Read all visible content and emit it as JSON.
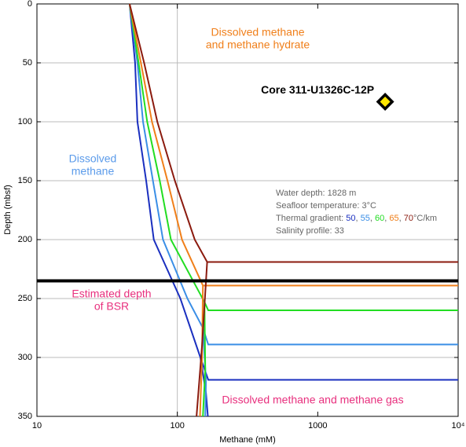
{
  "chart_data": {
    "type": "line",
    "xlabel": "Methane (mM)",
    "ylabel": "Depth (mbsf)",
    "xscale": "log",
    "xlim": [
      10,
      10000
    ],
    "xticks": [
      10,
      100,
      1000,
      {
        "value": 10000,
        "label": "10⁴"
      }
    ],
    "xgrid": [
      100
    ],
    "ylim": [
      0,
      350
    ],
    "yinverted": true,
    "yticks": [
      0,
      50,
      100,
      150,
      200,
      250,
      300,
      350
    ],
    "grid": true,
    "series": [
      {
        "name": "50",
        "color": "#1a2fbf",
        "x": [
          45.7,
          50,
          52,
          60,
          68,
          105,
          146,
          166,
          10000,
          null,
          146,
          160,
          165
        ],
        "y": [
          0,
          50,
          100,
          150,
          200,
          250,
          300,
          319,
          319,
          null,
          300,
          330,
          350
        ]
      },
      {
        "name": "55",
        "color": "#3a8ee6",
        "x": [
          45.7,
          52,
          57,
          67,
          79,
          118,
          152,
          166,
          10000,
          null,
          152,
          160,
          158
        ],
        "y": [
          0,
          50,
          100,
          150,
          200,
          250,
          275,
          289,
          289,
          null,
          275,
          320,
          350
        ]
      },
      {
        "name": "60",
        "color": "#22dd22",
        "x": [
          45.7,
          53,
          61,
          75,
          90,
          156,
          166,
          10000,
          null,
          156,
          158,
          152
        ],
        "y": [
          0,
          50,
          100,
          150,
          200,
          253,
          260,
          260,
          null,
          253,
          310,
          350
        ]
      },
      {
        "name": "65",
        "color": "#f07f1a",
        "x": [
          45.7,
          55,
          66,
          85,
          108,
          152,
          166,
          10000,
          null,
          152,
          150,
          145
        ],
        "y": [
          0,
          50,
          100,
          150,
          200,
          239,
          239,
          239,
          null,
          239,
          300,
          350
        ]
      },
      {
        "name": "70",
        "color": "#8b1a0e",
        "x": [
          45.7,
          58,
          72,
          96,
          133,
          163,
          166,
          10000,
          null,
          163,
          150,
          137
        ],
        "y": [
          0,
          50,
          100,
          150,
          200,
          219,
          219,
          219,
          null,
          219,
          290,
          350
        ]
      }
    ],
    "bsr_depth": 235,
    "core": {
      "label": "Core 311-U1326C-12P",
      "x": 3020,
      "y": 83
    },
    "annotations": {
      "hydrate": [
        "Dissolved methane",
        "and methane hydrate"
      ],
      "dissolved": [
        "Dissolved",
        "methane"
      ],
      "bsr": [
        "Estimated depth",
        "of BSR"
      ],
      "gas": "Dissolved methane and methane gas"
    },
    "info": [
      "Water depth: 1828 m",
      "Seafloor temperature: 3°C",
      "Salinity profile: 33"
    ],
    "legend": {
      "prefix": "Thermal gradient: ",
      "separator": ", ",
      "suffix": "°C/km"
    }
  }
}
